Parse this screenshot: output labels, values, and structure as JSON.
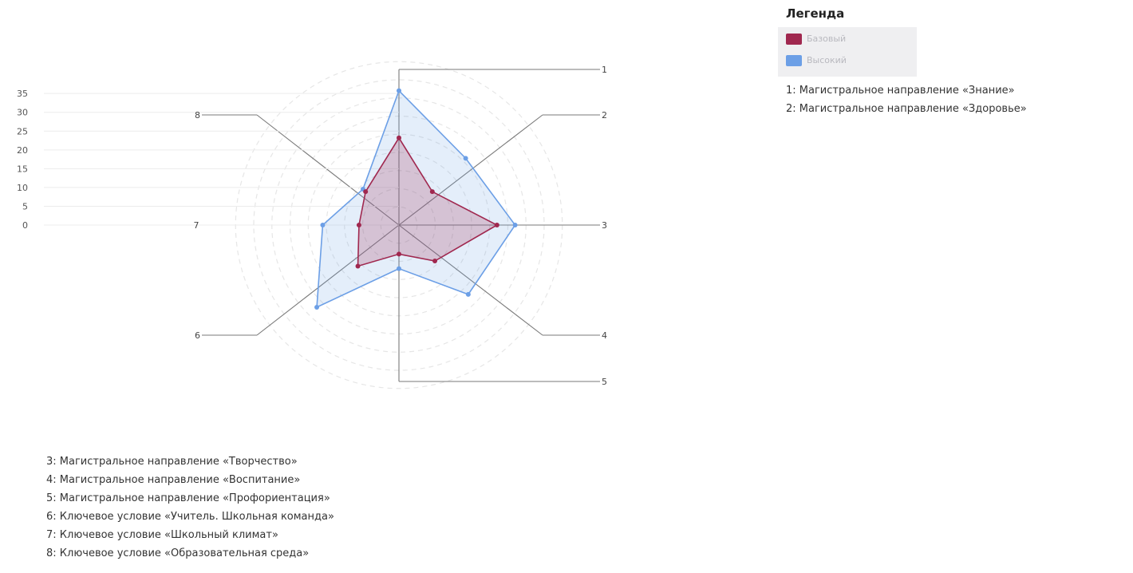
{
  "legend": {
    "title": "Легенда",
    "items": [
      {
        "label": "Базовый",
        "color": "#a0284f"
      },
      {
        "label": "Высокий",
        "color": "#6c9fe6"
      }
    ]
  },
  "categories": [
    {
      "number": "1",
      "label": "1: Магистральное направление «Знание»"
    },
    {
      "number": "2",
      "label": "2: Магистральное направление «Здоровье»"
    },
    {
      "number": "3",
      "label": "3: Магистральное направление «Творчество»"
    },
    {
      "number": "4",
      "label": "4: Магистральное направление «Воспитание»"
    },
    {
      "number": "5",
      "label": "5: Магистральное направление «Профориентация»"
    },
    {
      "number": "6",
      "label": "6: Ключевое условие «Учитель. Школьная команда»"
    },
    {
      "number": "7",
      "label": "7: Ключевое условие «Школьный климат»"
    },
    {
      "number": "8",
      "label": "8: Ключевое условие «Образовательная среда»"
    }
  ],
  "chart_data": {
    "type": "radar",
    "categories": [
      "1",
      "2",
      "3",
      "4",
      "5",
      "6",
      "7",
      "8"
    ],
    "ylim": [
      0,
      35
    ],
    "yticks": [
      0,
      5,
      10,
      15,
      20,
      25,
      30,
      35
    ],
    "grid": true,
    "legend_position": "top-right",
    "series": [
      {
        "name": "Базовый",
        "color": "#a0284f",
        "values": [
          24,
          13,
          27,
          14,
          8,
          16,
          11,
          13
        ]
      },
      {
        "name": "Высокий",
        "color": "#6c9fe6",
        "values": [
          37,
          26,
          32,
          27,
          12,
          32,
          21,
          14
        ]
      }
    ]
  }
}
